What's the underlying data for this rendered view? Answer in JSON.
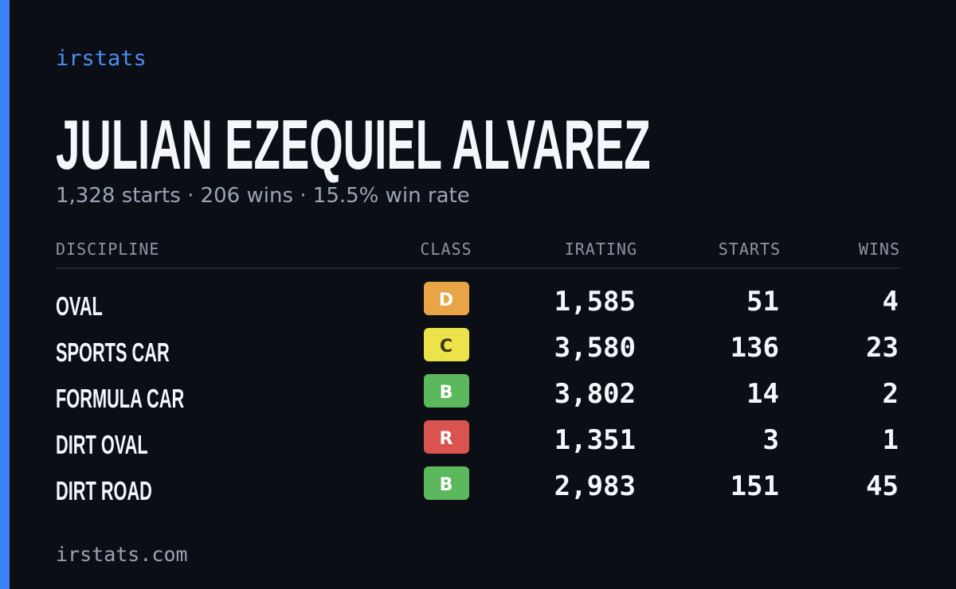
{
  "brand": "irstats",
  "driver": {
    "name": "JULIAN EZEQUIEL ALVAREZ",
    "summary": "1,328 starts · 206 wins · 15.5% win rate"
  },
  "table": {
    "headers": [
      "DISCIPLINE",
      "CLASS",
      "IRATING",
      "STARTS",
      "WINS"
    ],
    "rows": [
      {
        "discipline": "OVAL",
        "class": "D",
        "class_color": "#e9a445",
        "irating": "1,585",
        "starts": "51",
        "wins": "4"
      },
      {
        "discipline": "SPORTS CAR",
        "class": "C",
        "class_color": "#ece34a",
        "irating": "3,580",
        "starts": "136",
        "wins": "23"
      },
      {
        "discipline": "FORMULA CAR",
        "class": "B",
        "class_color": "#5cb85c",
        "irating": "3,802",
        "starts": "14",
        "wins": "2"
      },
      {
        "discipline": "DIRT OVAL",
        "class": "R",
        "class_color": "#d9534f",
        "irating": "1,351",
        "starts": "3",
        "wins": "1"
      },
      {
        "discipline": "DIRT ROAD",
        "class": "B",
        "class_color": "#5cb85c",
        "irating": "2,983",
        "starts": "151",
        "wins": "45"
      }
    ]
  },
  "footer": "irstats.com"
}
